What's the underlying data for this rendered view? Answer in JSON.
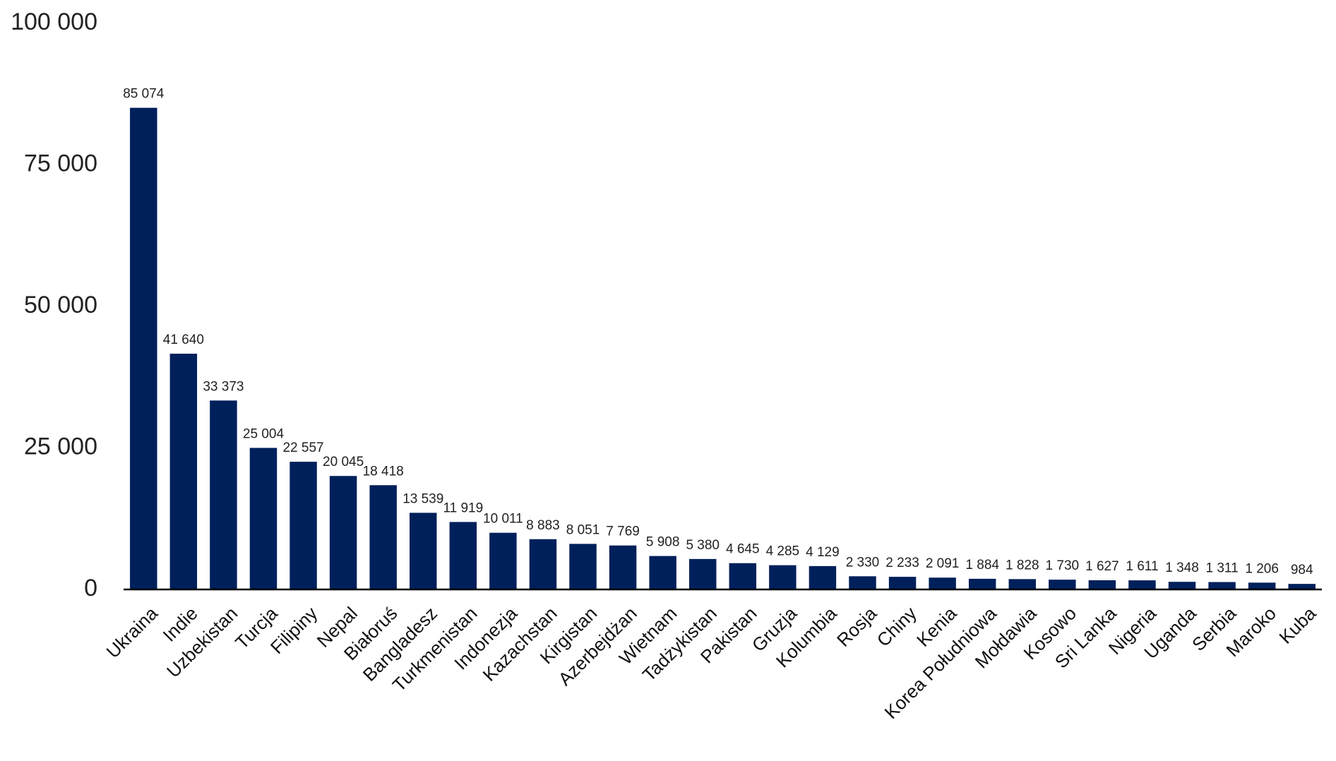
{
  "chart_data": {
    "type": "bar",
    "bar_color": "#00205B",
    "ylim": [
      0,
      100000
    ],
    "yticks": [
      0,
      25000,
      50000,
      75000,
      100000
    ],
    "ytick_labels": [
      "0",
      "25 000",
      "50 000",
      "75 000",
      "100 000"
    ],
    "grid": false,
    "categories": [
      "Ukraina",
      "Indie",
      "Uzbekistan",
      "Turcja",
      "Filipiny",
      "Nepal",
      "Białoruś",
      "Bangladesz",
      "Turkmenistan",
      "Indonezja",
      "Kazachstan",
      "Kirgistan",
      "Azerbejdżan",
      "Wietnam",
      "Tadżykistan",
      "Pakistan",
      "Gruzja",
      "Kolumbia",
      "Rosja",
      "Chiny",
      "Kenia",
      "Korea Południowa",
      "Mołdawia",
      "Kosowo",
      "Sri Lanka",
      "Nigeria",
      "Uganda",
      "Serbia",
      "Maroko",
      "Kuba"
    ],
    "values": [
      85074,
      41640,
      33373,
      25004,
      22557,
      20045,
      18418,
      13539,
      11919,
      10011,
      8883,
      8051,
      7769,
      5908,
      5380,
      4645,
      4285,
      4129,
      2330,
      2233,
      2091,
      1884,
      1828,
      1730,
      1627,
      1611,
      1348,
      1311,
      1206,
      984
    ],
    "value_labels": [
      "85 074",
      "41 640",
      "33 373",
      "25 004",
      "22 557",
      "20 045",
      "18 418",
      "13 539",
      "11 919",
      "10 011",
      "8 883",
      "8 051",
      "7 769",
      "5 908",
      "5 380",
      "4 645",
      "4 285",
      "4 129",
      "2 330",
      "2 233",
      "2 091",
      "1 884",
      "1 828",
      "1 730",
      "1 627",
      "1 611",
      "1 348",
      "1 311",
      "1 206",
      "984"
    ]
  }
}
